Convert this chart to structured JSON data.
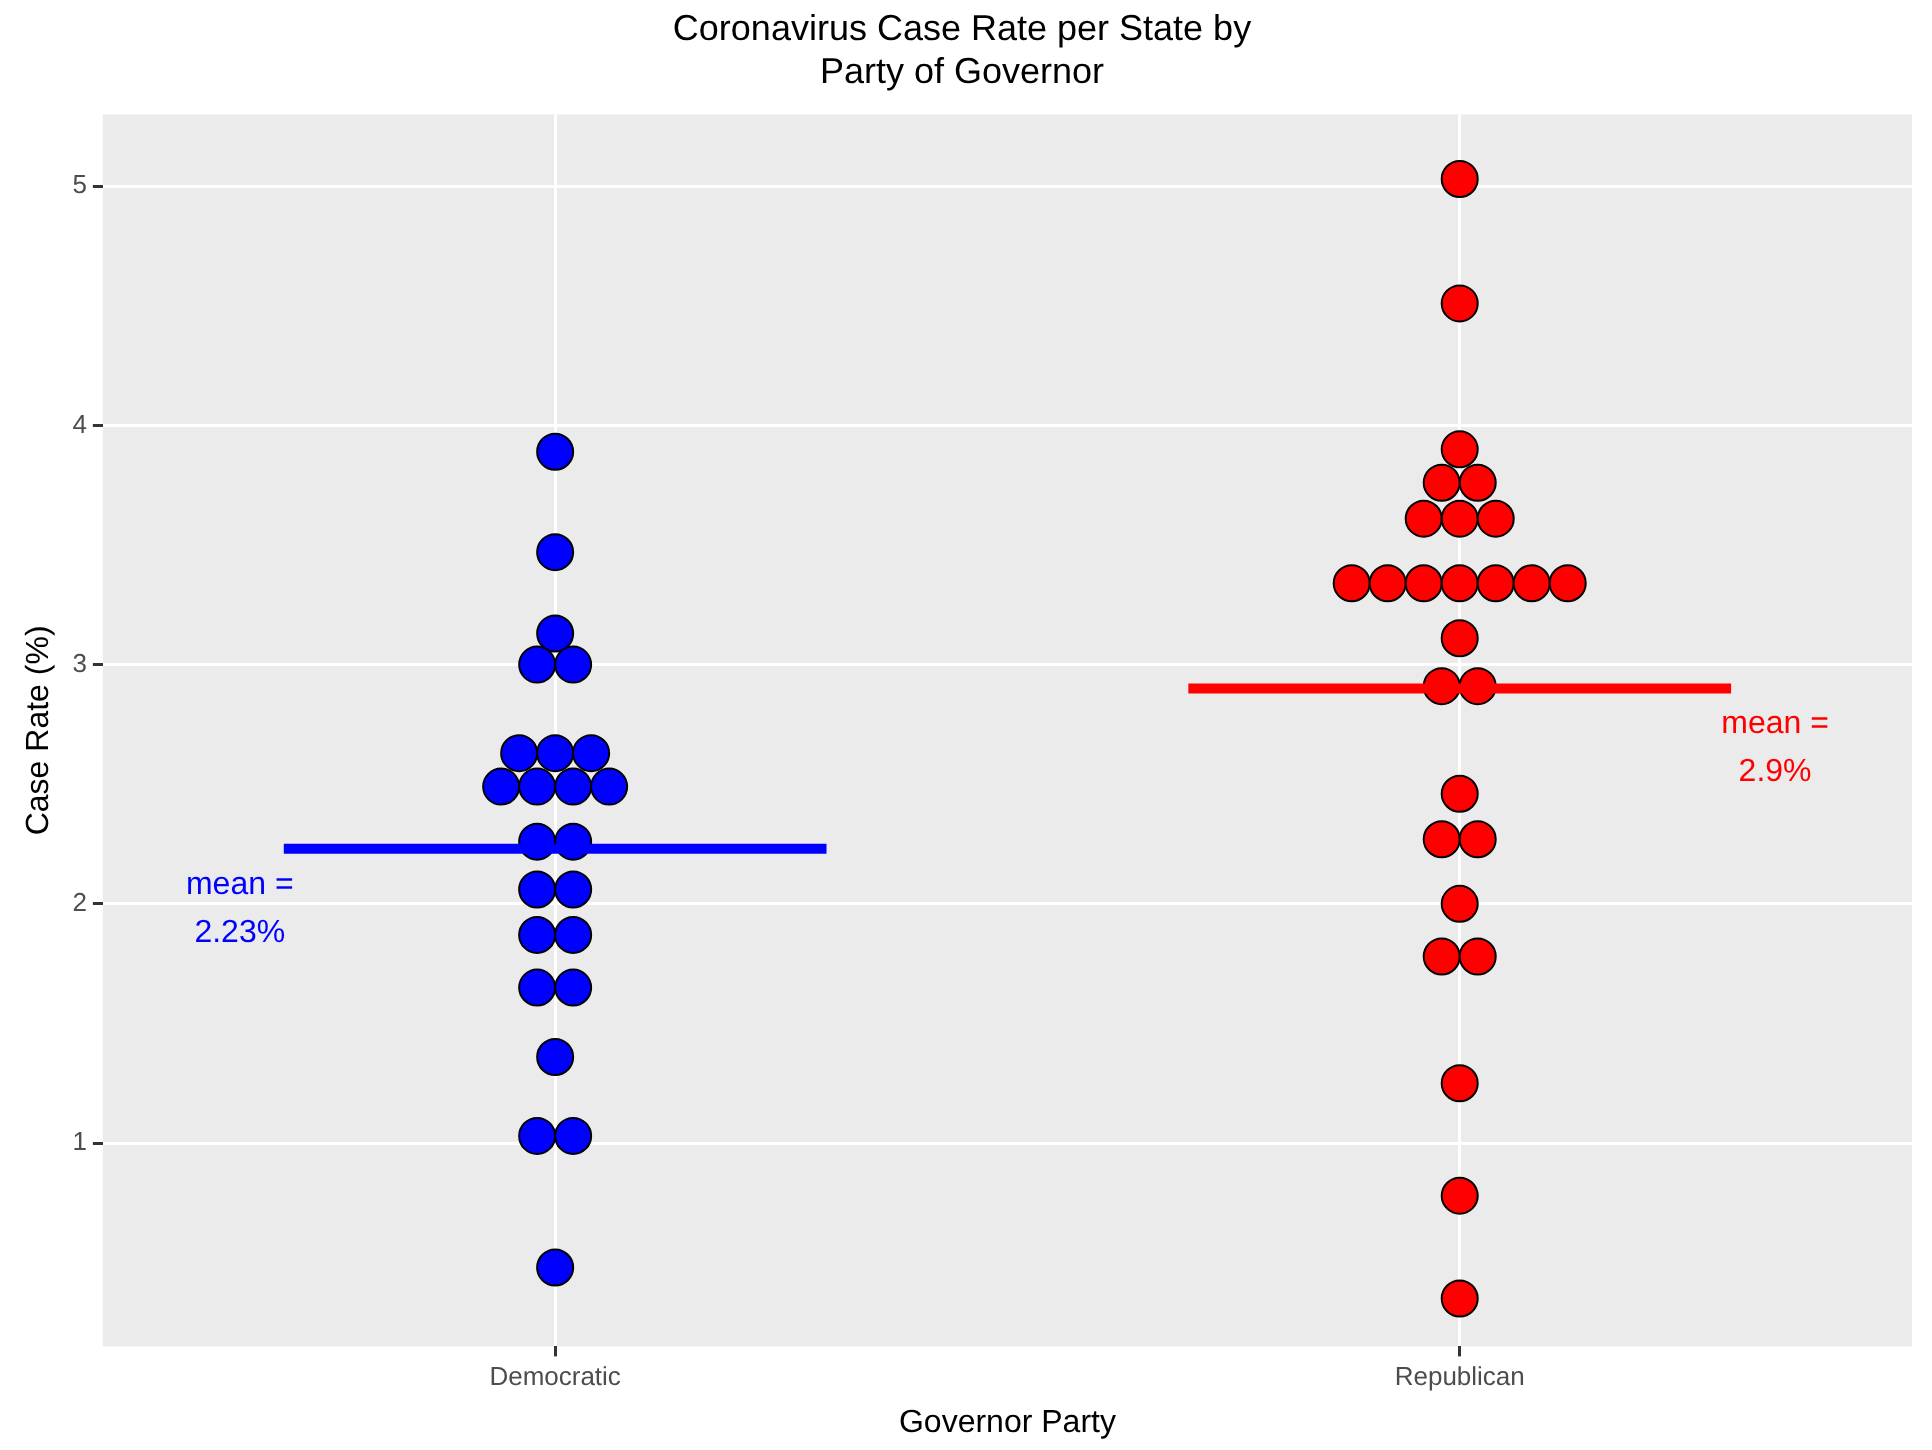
{
  "chart_data": {
    "type": "scatter",
    "title": "Coronavirus Case Rate per State by Party of Governor",
    "xlabel": "Governor Party",
    "ylabel": "Case Rate (%)",
    "categories": [
      "Democratic",
      "Republican"
    ],
    "series": [
      {
        "color": "#0000ff",
        "x": [
          "Democratic",
          "Democratic",
          "Democratic",
          "Democratic",
          "Democratic",
          "Democratic",
          "Democratic",
          "Democratic",
          "Democratic",
          "Democratic",
          "Democratic",
          "Democratic",
          "Democratic",
          "Democratic",
          "Democratic",
          "Democratic",
          "Democratic",
          "Democratic",
          "Democratic",
          "Democratic",
          "Democratic",
          "Democratic",
          "Democratic",
          "Democratic"
        ],
        "values": [
          3.89,
          3.47,
          3.13,
          3.0,
          3.0,
          2.63,
          2.63,
          2.63,
          2.49,
          2.49,
          2.49,
          2.49,
          2.26,
          2.26,
          2.06,
          2.06,
          1.87,
          1.87,
          1.65,
          1.65,
          1.36,
          1.03,
          1.03,
          0.48
        ]
      },
      {
        "color": "#ff0000",
        "x": [
          "Republican",
          "Republican",
          "Republican",
          "Republican",
          "Republican",
          "Republican",
          "Republican",
          "Republican",
          "Republican",
          "Republican",
          "Republican",
          "Republican",
          "Republican",
          "Republican",
          "Republican",
          "Republican",
          "Republican",
          "Republican",
          "Republican",
          "Republican",
          "Republican",
          "Republican",
          "Republican",
          "Republican",
          "Republican",
          "Republican",
          "Republican"
        ],
        "values": [
          5.03,
          4.51,
          3.9,
          3.76,
          3.76,
          3.61,
          3.61,
          3.61,
          3.34,
          3.34,
          3.34,
          3.34,
          3.34,
          3.34,
          3.34,
          3.11,
          2.91,
          2.91,
          2.46,
          2.27,
          2.27,
          2.0,
          1.78,
          1.78,
          1.25,
          0.78,
          0.35
        ]
      }
    ],
    "ylim": [
      0.15,
      5.3
    ],
    "yticks": [
      1,
      2,
      3,
      4,
      5
    ],
    "grid": true,
    "legend": false,
    "marker": "circle",
    "ref_lines": [
      {
        "axis": "y",
        "value": 2.23,
        "label": "mean = 2.23%",
        "color": "#0000ff"
      },
      {
        "axis": "y",
        "value": 2.9,
        "label": "mean = 2.9%",
        "color": "#ff0000"
      }
    ]
  }
}
